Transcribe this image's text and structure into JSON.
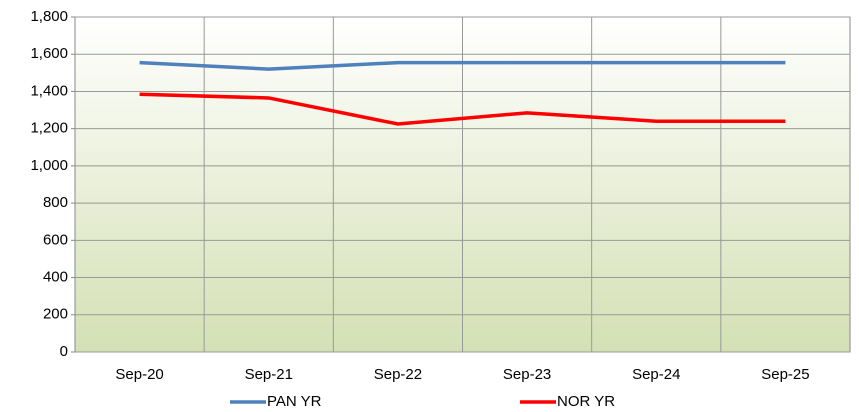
{
  "chart_data": {
    "type": "line",
    "categories": [
      "Sep-20",
      "Sep-21",
      "Sep-22",
      "Sep-23",
      "Sep-24",
      "Sep-25"
    ],
    "series": [
      {
        "name": "PAN YR",
        "color": "#4f81bd",
        "values": [
          1555,
          1520,
          1555,
          1555,
          1555,
          1555
        ]
      },
      {
        "name": "NOR YR",
        "color": "#ff0000",
        "values": [
          1385,
          1365,
          1225,
          1285,
          1240,
          1240
        ]
      }
    ],
    "ylim": [
      0,
      1800
    ],
    "yticks": [
      0,
      200,
      400,
      600,
      800,
      {
        "value": 1000,
        "label": "1,000"
      },
      {
        "value": 1200,
        "label": "1,200"
      },
      {
        "value": 1400,
        "label": "1,400"
      },
      {
        "value": 1600,
        "label": "1,600"
      },
      {
        "value": 1800,
        "label": "1,800"
      }
    ],
    "grid": true,
    "legend": "bottom"
  }
}
